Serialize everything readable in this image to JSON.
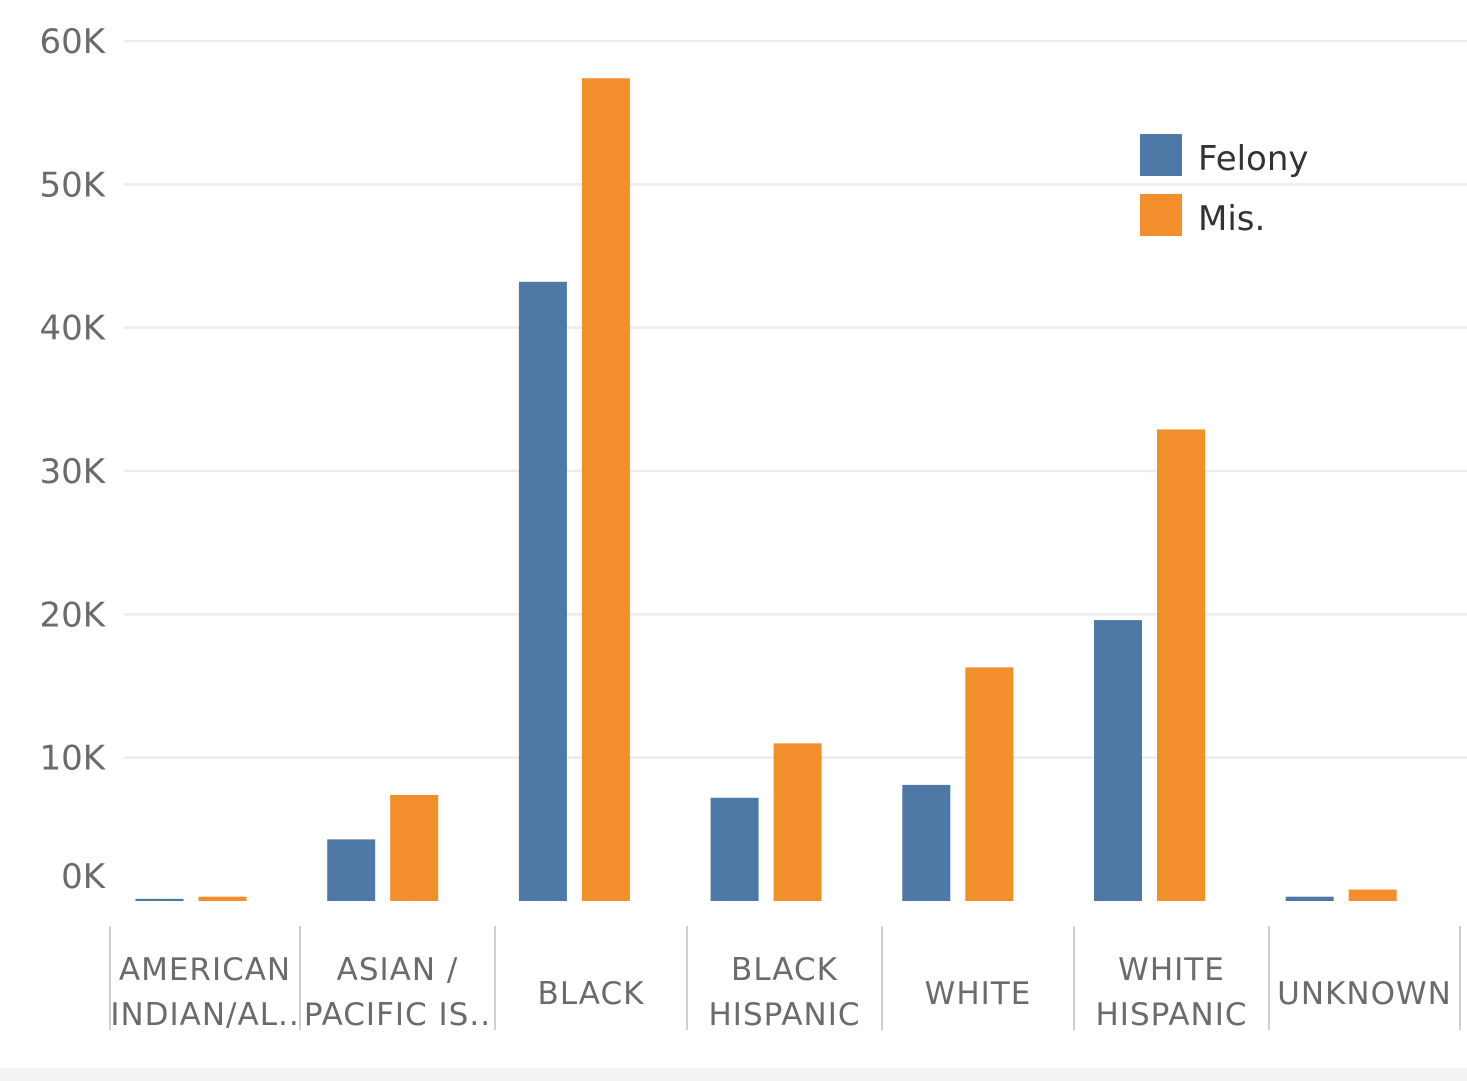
{
  "colors": {
    "felony": "#4e79a7",
    "mis": "#f28e2b",
    "grid": "#ececec",
    "axis_text": "#6b6b6b"
  },
  "chart_data": {
    "type": "bar",
    "categories": [
      [
        "AMERICAN",
        "INDIAN/AL.."
      ],
      [
        "ASIAN /",
        "PACIFIC IS.."
      ],
      [
        "BLACK"
      ],
      [
        "BLACK",
        "HISPANIC"
      ],
      [
        "WHITE"
      ],
      [
        "WHITE",
        "HISPANIC"
      ],
      [
        "UNKNOWN"
      ]
    ],
    "series": [
      {
        "name": "Felony",
        "values": [
          150,
          4300,
          43200,
          7200,
          8100,
          19600,
          300
        ]
      },
      {
        "name": "Mis.",
        "values": [
          300,
          7400,
          57400,
          11000,
          16300,
          32900,
          800
        ]
      }
    ],
    "ylim": [
      0,
      60000
    ],
    "yticks": [
      0,
      10000,
      20000,
      30000,
      40000,
      50000,
      60000
    ],
    "ytick_labels": [
      "0K",
      "10K",
      "20K",
      "30K",
      "40K",
      "50K",
      "60K"
    ],
    "grid": true,
    "legend_position": "top-right",
    "title": "",
    "xlabel": "",
    "ylabel": ""
  }
}
